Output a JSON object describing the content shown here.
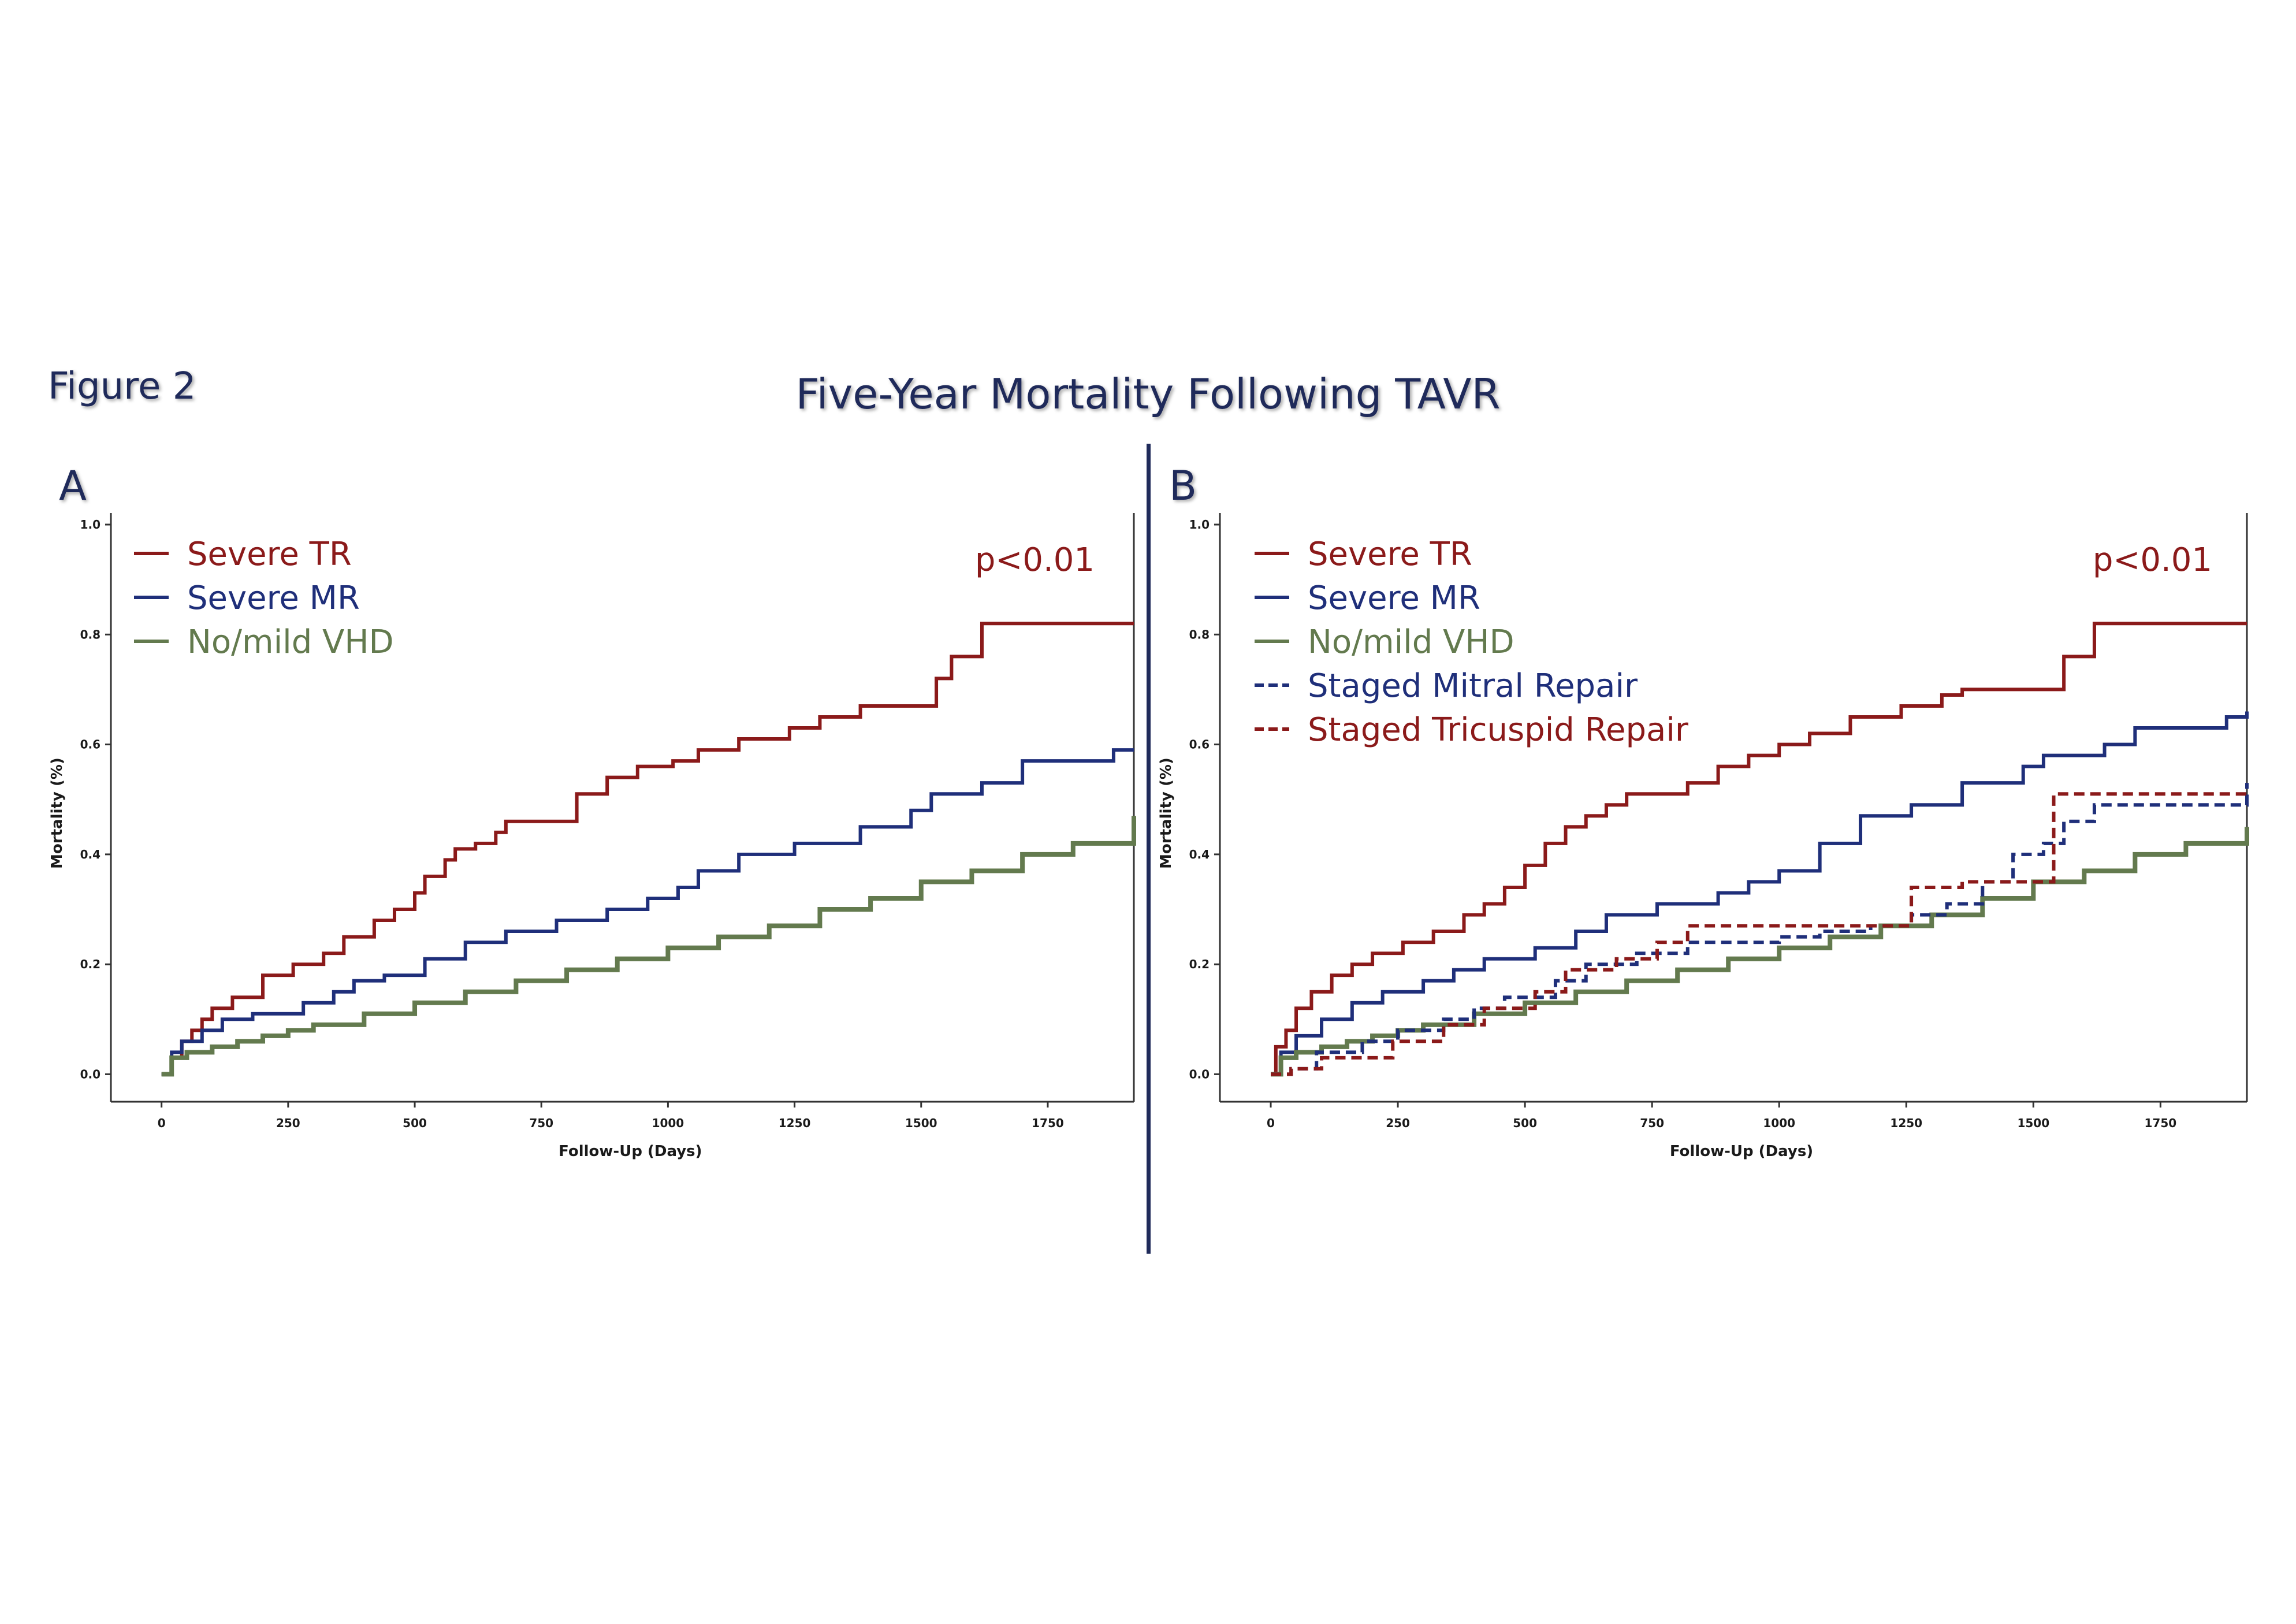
{
  "figure_label": "Figure 2",
  "title": "Five-Year Mortality Following TAVR",
  "colors": {
    "tr": "#8b1a1a",
    "mr": "#1f2f7a",
    "vhd": "#637a4e",
    "text": "#1f2a5a"
  },
  "chart_data": [
    {
      "panel": "A",
      "type": "line",
      "xlabel": "Follow-Up (Days)",
      "ylabel": "Mortality (%)",
      "xlim": [
        -100,
        1920
      ],
      "ylim": [
        -0.05,
        1.0
      ],
      "xticks": [
        "0",
        "250",
        "500",
        "750",
        "1000",
        "1250",
        "1500",
        "1750"
      ],
      "yticks": [
        "0.0",
        "0.2",
        "0.4",
        "0.6",
        "0.8",
        "1.0"
      ],
      "annotation": "p<0.01",
      "series": [
        {
          "name": "Severe TR",
          "color": "#8b1a1a",
          "dash": false,
          "x": [
            0,
            20,
            40,
            60,
            80,
            100,
            140,
            200,
            260,
            320,
            360,
            420,
            460,
            500,
            520,
            560,
            580,
            620,
            660,
            680,
            820,
            880,
            940,
            1010,
            1060,
            1140,
            1240,
            1300,
            1380,
            1530,
            1560,
            1620,
            1920
          ],
          "y": [
            0,
            0.03,
            0.06,
            0.08,
            0.1,
            0.12,
            0.14,
            0.18,
            0.2,
            0.22,
            0.25,
            0.28,
            0.3,
            0.33,
            0.36,
            0.39,
            0.41,
            0.42,
            0.44,
            0.46,
            0.51,
            0.54,
            0.56,
            0.57,
            0.59,
            0.61,
            0.63,
            0.65,
            0.67,
            0.72,
            0.76,
            0.82,
            0.82
          ]
        },
        {
          "name": "Severe MR",
          "color": "#1f2f7a",
          "dash": false,
          "x": [
            0,
            20,
            40,
            80,
            120,
            180,
            280,
            340,
            380,
            440,
            520,
            600,
            680,
            780,
            880,
            960,
            1020,
            1060,
            1140,
            1250,
            1380,
            1480,
            1520,
            1620,
            1700,
            1880,
            1920
          ],
          "y": [
            0,
            0.04,
            0.06,
            0.08,
            0.1,
            0.11,
            0.13,
            0.15,
            0.17,
            0.18,
            0.21,
            0.24,
            0.26,
            0.28,
            0.3,
            0.32,
            0.34,
            0.37,
            0.4,
            0.42,
            0.45,
            0.48,
            0.51,
            0.53,
            0.57,
            0.59,
            0.59
          ]
        },
        {
          "name": "No/mild VHD",
          "color": "#637a4e",
          "dash": false,
          "x": [
            0,
            20,
            50,
            100,
            150,
            200,
            250,
            300,
            400,
            500,
            600,
            700,
            800,
            900,
            1000,
            1100,
            1200,
            1300,
            1400,
            1500,
            1600,
            1700,
            1800,
            1920
          ],
          "y": [
            0,
            0.03,
            0.04,
            0.05,
            0.06,
            0.07,
            0.08,
            0.09,
            0.11,
            0.13,
            0.15,
            0.17,
            0.19,
            0.21,
            0.23,
            0.25,
            0.27,
            0.3,
            0.32,
            0.35,
            0.37,
            0.4,
            0.42,
            0.47
          ]
        }
      ]
    },
    {
      "panel": "B",
      "type": "line",
      "xlabel": "Follow-Up (Days)",
      "ylabel": "Mortality (%)",
      "xlim": [
        -100,
        1920
      ],
      "ylim": [
        -0.05,
        1.0
      ],
      "xticks": [
        "0",
        "250",
        "500",
        "750",
        "1000",
        "1250",
        "1500",
        "1750"
      ],
      "yticks": [
        "0.0",
        "0.2",
        "0.4",
        "0.6",
        "0.8",
        "1.0"
      ],
      "annotation": "p<0.01",
      "series": [
        {
          "name": "Severe TR",
          "color": "#8b1a1a",
          "dash": false,
          "x": [
            0,
            10,
            30,
            50,
            80,
            120,
            160,
            200,
            260,
            320,
            380,
            420,
            460,
            500,
            540,
            580,
            620,
            660,
            700,
            820,
            880,
            940,
            1000,
            1060,
            1140,
            1240,
            1320,
            1360,
            1560,
            1620,
            1920
          ],
          "y": [
            0,
            0.05,
            0.08,
            0.12,
            0.15,
            0.18,
            0.2,
            0.22,
            0.24,
            0.26,
            0.29,
            0.31,
            0.34,
            0.38,
            0.42,
            0.45,
            0.47,
            0.49,
            0.51,
            0.53,
            0.56,
            0.58,
            0.6,
            0.62,
            0.65,
            0.67,
            0.69,
            0.7,
            0.76,
            0.82,
            0.82
          ]
        },
        {
          "name": "Severe MR",
          "color": "#1f2f7a",
          "dash": false,
          "x": [
            0,
            20,
            50,
            100,
            160,
            220,
            300,
            360,
            420,
            520,
            600,
            660,
            760,
            880,
            940,
            1000,
            1080,
            1160,
            1260,
            1360,
            1480,
            1520,
            1640,
            1700,
            1880,
            1920
          ],
          "y": [
            0,
            0.04,
            0.07,
            0.1,
            0.13,
            0.15,
            0.17,
            0.19,
            0.21,
            0.23,
            0.26,
            0.29,
            0.31,
            0.33,
            0.35,
            0.37,
            0.42,
            0.47,
            0.49,
            0.53,
            0.56,
            0.58,
            0.6,
            0.63,
            0.65,
            0.66
          ]
        },
        {
          "name": "No/mild VHD",
          "color": "#637a4e",
          "dash": false,
          "x": [
            0,
            20,
            50,
            100,
            150,
            200,
            250,
            300,
            400,
            500,
            600,
            700,
            800,
            900,
            1000,
            1100,
            1200,
            1300,
            1400,
            1500,
            1600,
            1700,
            1800,
            1920
          ],
          "y": [
            0,
            0.03,
            0.04,
            0.05,
            0.06,
            0.07,
            0.08,
            0.09,
            0.11,
            0.13,
            0.15,
            0.17,
            0.19,
            0.21,
            0.23,
            0.25,
            0.27,
            0.29,
            0.32,
            0.35,
            0.37,
            0.4,
            0.42,
            0.45
          ]
        },
        {
          "name": "Staged Mitral Repair",
          "color": "#1f2f7a",
          "dash": true,
          "x": [
            0,
            40,
            90,
            180,
            250,
            340,
            400,
            460,
            560,
            620,
            720,
            820,
            880,
            1000,
            1080,
            1180,
            1260,
            1330,
            1400,
            1460,
            1520,
            1560,
            1620,
            1920
          ],
          "y": [
            0,
            0.01,
            0.04,
            0.06,
            0.08,
            0.1,
            0.12,
            0.14,
            0.17,
            0.2,
            0.22,
            0.24,
            0.24,
            0.25,
            0.26,
            0.27,
            0.29,
            0.31,
            0.35,
            0.4,
            0.42,
            0.46,
            0.49,
            0.53
          ]
        },
        {
          "name": "Staged Tricuspid Repair",
          "color": "#8b1a1a",
          "dash": true,
          "x": [
            0,
            40,
            100,
            240,
            340,
            420,
            520,
            580,
            680,
            760,
            820,
            1000,
            1140,
            1260,
            1360,
            1440,
            1540,
            1920
          ],
          "y": [
            0,
            0.01,
            0.03,
            0.06,
            0.09,
            0.12,
            0.15,
            0.19,
            0.21,
            0.24,
            0.27,
            0.27,
            0.27,
            0.34,
            0.35,
            0.35,
            0.51,
            0.51
          ]
        }
      ]
    }
  ]
}
